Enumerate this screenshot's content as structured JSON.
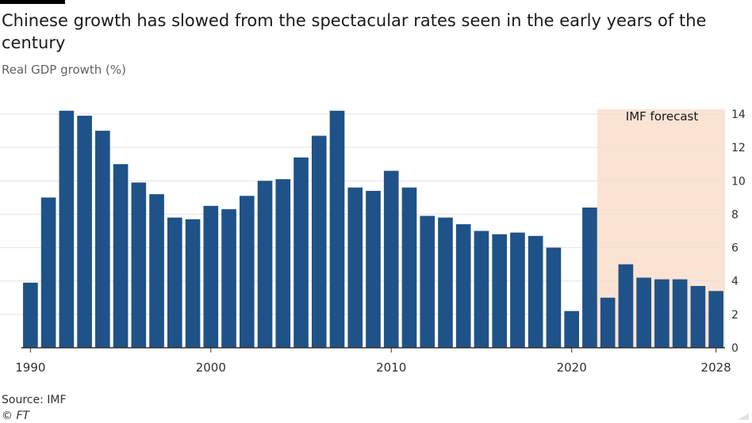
{
  "title": "Chinese growth has slowed from the spectacular rates seen in the early years of the century",
  "subtitle": "Real GDP growth (%)",
  "source": "Source: IMF",
  "copyright": "© FT",
  "colors": {
    "bar": "#1f5289",
    "forecast_band": "#fbe3d3",
    "grid": "#e6e2df",
    "axis": "#33302e",
    "text": "#33302e"
  },
  "chart_data": {
    "type": "bar",
    "x": [
      1990,
      1991,
      1992,
      1993,
      1994,
      1995,
      1996,
      1997,
      1998,
      1999,
      2000,
      2001,
      2002,
      2003,
      2004,
      2005,
      2006,
      2007,
      2008,
      2009,
      2010,
      2011,
      2012,
      2013,
      2014,
      2015,
      2016,
      2017,
      2018,
      2019,
      2020,
      2021,
      2022,
      2023,
      2024,
      2025,
      2026,
      2027,
      2028
    ],
    "values": [
      3.9,
      9.0,
      14.2,
      13.9,
      13.0,
      11.0,
      9.9,
      9.2,
      7.8,
      7.7,
      8.5,
      8.3,
      9.1,
      10.0,
      10.1,
      11.4,
      12.7,
      14.2,
      9.6,
      9.4,
      10.6,
      9.6,
      7.9,
      7.8,
      7.4,
      7.0,
      6.8,
      6.9,
      6.7,
      6.0,
      2.2,
      8.4,
      3.0,
      5.0,
      4.2,
      4.1,
      4.1,
      3.7,
      3.4
    ],
    "xtick_labels": [
      "1990",
      "2000",
      "2010",
      "2020",
      "2028"
    ],
    "ytick_labels": [
      "0",
      "2",
      "4",
      "6",
      "8",
      "10",
      "12",
      "14"
    ],
    "ylim": [
      0,
      14
    ],
    "grid": true,
    "y_axis_position": "right",
    "forecast_start": 2022,
    "forecast_end": 2028,
    "annotation": "IMF forecast"
  }
}
